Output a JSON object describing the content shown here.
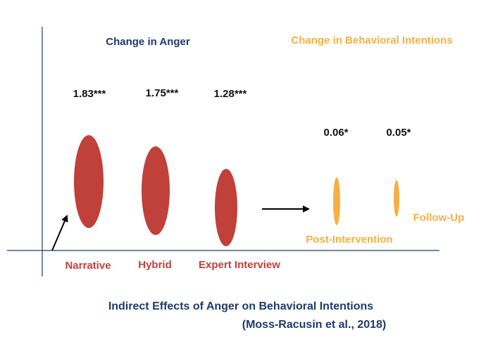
{
  "headings": {
    "anger": "Change in Anger",
    "behavior": "Change in Behavioral Intentions"
  },
  "anger_effects": [
    {
      "label": "Narrative",
      "value": "1.83***"
    },
    {
      "label": "Hybrid",
      "value": "1.75***"
    },
    {
      "label": "Expert Interview",
      "value": "1.28***"
    }
  ],
  "behavior_effects": [
    {
      "label": "Post-Intervention",
      "value": "0.06*"
    },
    {
      "label": "Follow-Up",
      "value": "0.05*"
    }
  ],
  "caption": {
    "title": "Indirect Effects of Anger on Behavioral Intentions",
    "citation": "(Moss-Racusin et al., 2018)"
  },
  "colors": {
    "anger": "#c0403a",
    "behavior": "#f5b041",
    "axis": "#1f3a6b"
  }
}
